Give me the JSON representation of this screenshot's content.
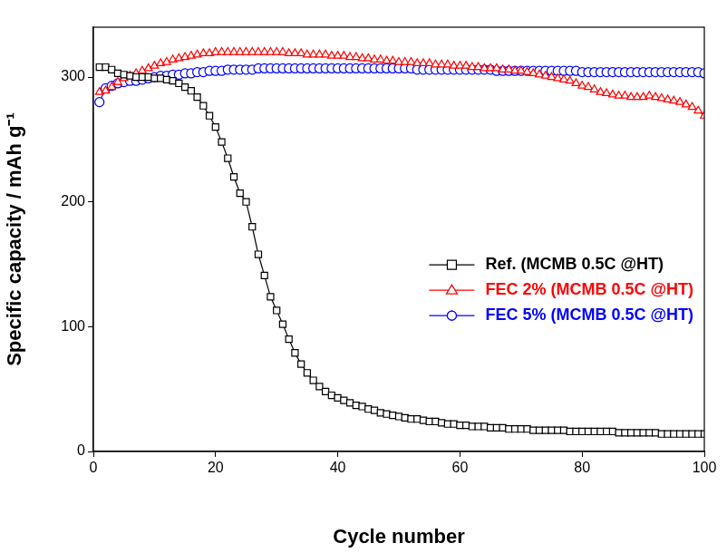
{
  "chart_data": {
    "type": "line",
    "x_label": "Cycle number",
    "y_label": "Specific capacity / mAh g⁻¹",
    "x": [
      1,
      2,
      3,
      4,
      5,
      6,
      7,
      8,
      9,
      10,
      11,
      12,
      13,
      14,
      15,
      16,
      17,
      18,
      19,
      20,
      21,
      22,
      23,
      24,
      25,
      26,
      27,
      28,
      29,
      30,
      31,
      32,
      33,
      34,
      35,
      36,
      37,
      38,
      39,
      40,
      41,
      42,
      43,
      44,
      45,
      46,
      47,
      48,
      49,
      50,
      51,
      52,
      53,
      54,
      55,
      56,
      57,
      58,
      59,
      60,
      61,
      62,
      63,
      64,
      65,
      66,
      67,
      68,
      69,
      70,
      71,
      72,
      73,
      74,
      75,
      76,
      77,
      78,
      79,
      80,
      81,
      82,
      83,
      84,
      85,
      86,
      87,
      88,
      89,
      90,
      91,
      92,
      93,
      94,
      95,
      96,
      97,
      98,
      99,
      100
    ],
    "series": [
      {
        "name": "Ref. (MCMB 0.5C @HT)",
        "color": "#000000",
        "marker": "square",
        "line_style": "solid",
        "values": [
          308,
          308,
          306,
          303,
          302,
          301,
          300,
          300,
          300,
          299,
          299,
          298,
          297,
          295,
          292,
          289,
          284,
          277,
          269,
          260,
          248,
          235,
          220,
          207,
          200,
          180,
          158,
          141,
          124,
          113,
          102,
          90,
          79,
          70,
          63,
          57,
          52,
          48,
          45,
          43,
          41,
          39,
          37,
          36,
          34,
          33,
          31,
          30,
          29,
          28,
          27,
          26,
          26,
          25,
          24,
          24,
          23,
          22,
          22,
          21,
          21,
          20,
          20,
          20,
          19,
          19,
          19,
          18,
          18,
          18,
          18,
          17,
          17,
          17,
          17,
          17,
          17,
          16,
          16,
          16,
          16,
          16,
          16,
          16,
          16,
          15,
          15,
          15,
          15,
          15,
          15,
          15,
          14,
          14,
          14,
          14,
          14,
          14,
          14,
          14
        ]
      },
      {
        "name": "FEC 2% (MCMB 0.5C @HT)",
        "color": "#ff0000",
        "marker": "triangle",
        "line_style": "solid",
        "values": [
          288,
          289,
          292,
          296,
          299,
          301,
          303,
          305,
          307,
          309,
          311,
          312,
          314,
          315,
          316,
          317,
          318,
          319,
          319,
          320,
          320,
          320,
          320,
          320,
          320,
          320,
          320,
          320,
          320,
          320,
          320,
          319,
          319,
          319,
          318,
          318,
          318,
          318,
          317,
          317,
          317,
          316,
          316,
          315,
          315,
          314,
          314,
          313,
          313,
          312,
          312,
          312,
          311,
          311,
          311,
          310,
          310,
          310,
          309,
          309,
          309,
          308,
          308,
          307,
          307,
          307,
          306,
          306,
          305,
          305,
          304,
          303,
          302,
          301,
          300,
          299,
          298,
          297,
          295,
          293,
          292,
          290,
          288,
          287,
          286,
          285,
          285,
          284,
          284,
          284,
          285,
          284,
          283,
          282,
          281,
          280,
          278,
          276,
          273,
          269
        ]
      },
      {
        "name": "FEC 5% (MCMB 0.5C @HT)",
        "color": "#0000ff",
        "marker": "circle",
        "line_style": "solid",
        "values": [
          280,
          291,
          293,
          295,
          296,
          297,
          297,
          298,
          299,
          300,
          301,
          301,
          302,
          302,
          303,
          303,
          304,
          304,
          305,
          305,
          305,
          306,
          306,
          306,
          306,
          306,
          307,
          307,
          307,
          307,
          307,
          307,
          307,
          307,
          307,
          307,
          307,
          307,
          307,
          307,
          307,
          307,
          307,
          307,
          307,
          307,
          307,
          307,
          307,
          307,
          307,
          307,
          306,
          306,
          306,
          306,
          306,
          306,
          306,
          306,
          306,
          306,
          306,
          306,
          306,
          305,
          305,
          305,
          305,
          305,
          305,
          305,
          305,
          305,
          305,
          305,
          305,
          305,
          305,
          304,
          304,
          304,
          304,
          304,
          304,
          304,
          304,
          304,
          304,
          304,
          304,
          304,
          304,
          304,
          304,
          304,
          304,
          304,
          304,
          303
        ]
      }
    ],
    "xlim": [
      0,
      100
    ],
    "xticks": [
      0,
      20,
      40,
      60,
      80,
      100
    ],
    "ylim": [
      0,
      340
    ],
    "yticks": [
      0,
      100,
      200,
      300
    ],
    "grid": false,
    "legend": "right"
  }
}
